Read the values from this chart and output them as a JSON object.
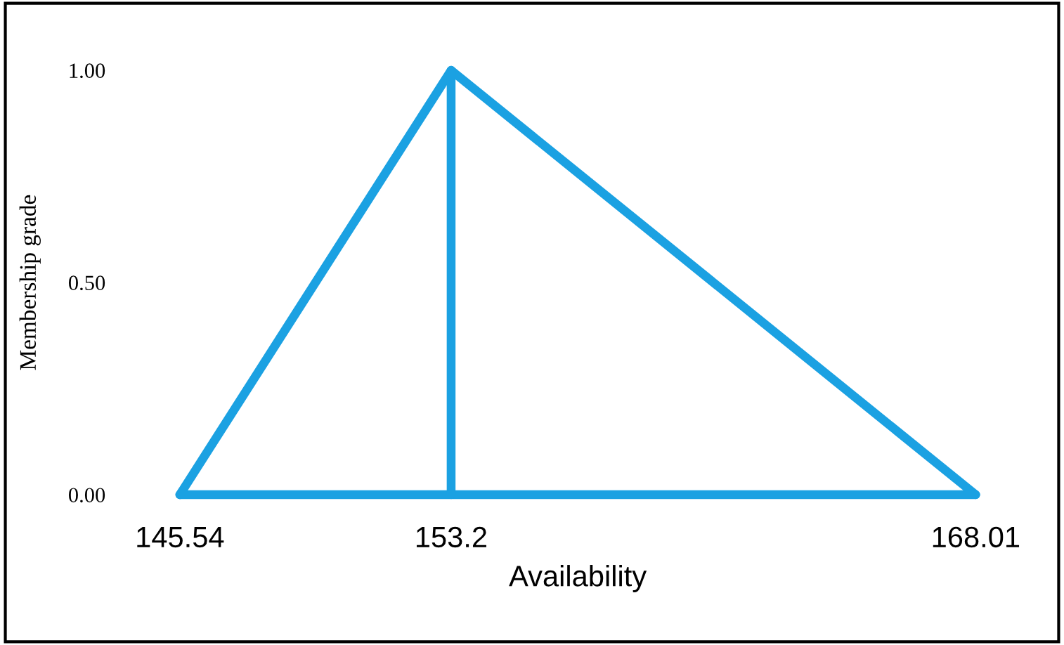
{
  "chart_data": {
    "type": "line",
    "xlabel": "Availability",
    "ylabel": "Membership grade",
    "series": [
      {
        "color": "#1ba1e2",
        "x": [
          145.54,
          153.2,
          168.01
        ],
        "values": [
          0,
          1,
          0
        ]
      },
      {
        "color": "#1ba1e2",
        "x": [
          145.54,
          168.01
        ],
        "values": [
          0,
          0
        ]
      },
      {
        "color": "#1ba1e2",
        "x": [
          153.2,
          153.2
        ],
        "values": [
          0,
          1
        ]
      }
    ],
    "xlim": [
      145.54,
      168.01
    ],
    "ylim": [
      0,
      1
    ],
    "xticks": [
      145.54,
      153.2,
      168.01
    ],
    "yticks": [
      {
        "value": 0,
        "label": "0.00"
      },
      {
        "value": 0.5,
        "label": "0.50"
      },
      {
        "value": 1,
        "label": "1.00"
      }
    ],
    "grid": false,
    "legend": false,
    "marker": "none",
    "line_style": "solid"
  }
}
